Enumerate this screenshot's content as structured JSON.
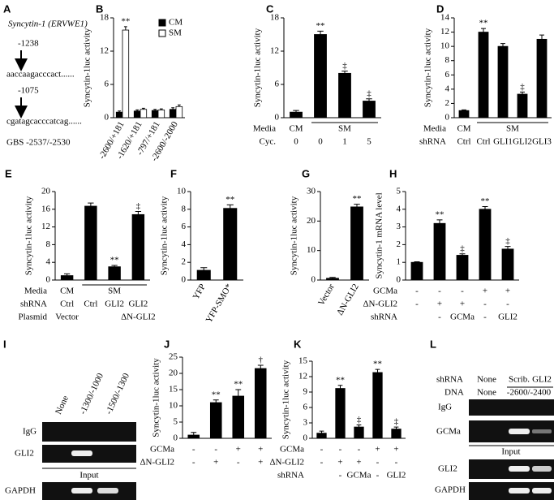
{
  "panel_A": {
    "letter": "A",
    "title": "Syncytin-1 (ERVWE1)",
    "pos1": "-1238",
    "seq1": "aaccaagacccact......",
    "pos2": "-1075",
    "seq2": "cgatagcacccatcag......",
    "gbs": "GBS -2537/-2530"
  },
  "chart_data": [
    {
      "panel": "B",
      "type": "bar",
      "y_label": "Syncytin-1luc activity",
      "categories": [
        "-2600/+181",
        "-1620/+181",
        "-797/+181",
        "-2600/-2000"
      ],
      "rotate_labels": true,
      "series": [
        {
          "name": "CM",
          "color": "#000000",
          "values": [
            1,
            1.2,
            1.3,
            1.5
          ],
          "errors": [
            0.2,
            0.2,
            0.2,
            0.3
          ]
        },
        {
          "name": "SM",
          "color": "#ffffff",
          "values": [
            15.8,
            1.5,
            1.4,
            2.0
          ],
          "errors": [
            0.6,
            0.2,
            0.2,
            0.3
          ],
          "annotations": [
            "**",
            null,
            null,
            null
          ]
        }
      ],
      "legend": "upper right",
      "ylim": [
        0,
        18
      ],
      "yticks": [
        0,
        6,
        12,
        18
      ]
    },
    {
      "panel": "C",
      "type": "bar",
      "y_label": "Syncytin-1luc activity",
      "color": "#000000",
      "values": [
        1,
        15,
        8,
        3
      ],
      "errors": [
        0.3,
        0.6,
        0.4,
        0.4
      ],
      "annotations": [
        null,
        "**",
        "‡",
        "‡"
      ],
      "rows": [
        {
          "label": "Media",
          "cells": [
            "CM",
            "SM",
            null,
            null
          ]
        },
        {
          "label": "Cyc.",
          "cells": [
            "0",
            "0",
            "1",
            "5"
          ]
        }
      ],
      "ylim": [
        0,
        18
      ],
      "yticks": [
        0,
        6,
        12,
        18
      ]
    },
    {
      "panel": "D",
      "type": "bar",
      "y_label": "Syncytin-1luc activity",
      "color": "#000000",
      "values": [
        1,
        12,
        10,
        3.3,
        11
      ],
      "errors": [
        0.1,
        0.5,
        0.4,
        0.3,
        0.6
      ],
      "annotations": [
        null,
        "**",
        null,
        "‡",
        null
      ],
      "rows": [
        {
          "label": "Media",
          "cells": [
            "CM",
            "SM",
            null,
            null,
            null
          ]
        },
        {
          "label": "shRNA",
          "cells": [
            "Ctrl",
            "Ctrl",
            "GLI1",
            "GLI2",
            "GLI3"
          ]
        }
      ],
      "ylim": [
        0,
        14
      ],
      "yticks": [
        0,
        2,
        4,
        6,
        8,
        10,
        12,
        14
      ]
    },
    {
      "panel": "E",
      "type": "bar",
      "y_label": "Syncytin-1luc activity",
      "color": "#000000",
      "values": [
        1,
        16.7,
        3,
        14.8
      ],
      "errors": [
        0.4,
        0.7,
        0.3,
        0.7
      ],
      "annotations": [
        null,
        null,
        "**",
        "‡"
      ],
      "rows": [
        {
          "label": "Media",
          "cells": [
            "CM",
            "SM",
            null,
            null
          ]
        },
        {
          "label": "shRNA",
          "cells": [
            "Ctrl",
            "Ctrl",
            "GLI2",
            "GLI2"
          ]
        },
        {
          "label": "Plasmid",
          "cells": [
            "Vector",
            null,
            null,
            "ΔN-GLI2"
          ]
        }
      ],
      "ylim": [
        0,
        20
      ],
      "yticks": [
        0,
        4,
        8,
        12,
        16,
        20
      ]
    },
    {
      "panel": "F",
      "type": "bar",
      "y_label": "Syncytin-1luc activity",
      "color": "#000000",
      "categories": [
        "YFP",
        "YFP-SMO*"
      ],
      "rotate_labels": true,
      "values": [
        1.1,
        8.1
      ],
      "errors": [
        0.3,
        0.4
      ],
      "annotations": [
        null,
        "**"
      ],
      "ylim": [
        0,
        10
      ],
      "yticks": [
        0,
        2,
        4,
        6,
        8,
        10
      ]
    },
    {
      "panel": "G",
      "type": "bar",
      "y_label": "Syncytin-1luc activity",
      "color": "#000000",
      "categories": [
        "Vector",
        "ΔN-GLI2"
      ],
      "rotate_labels": true,
      "values": [
        0.6,
        24.8
      ],
      "errors": [
        0.3,
        0.9
      ],
      "annotations": [
        null,
        "**"
      ],
      "ylim": [
        0,
        30
      ],
      "yticks": [
        0,
        10,
        20,
        30
      ]
    },
    {
      "panel": "H",
      "type": "bar",
      "y_label": "Syncytin-1 mRNA level",
      "color": "#000000",
      "values": [
        1,
        3.2,
        1.4,
        4,
        1.75
      ],
      "errors": [
        0.03,
        0.2,
        0.08,
        0.15,
        0.15
      ],
      "annotations": [
        null,
        "**",
        "‡",
        "**",
        "‡"
      ],
      "rows": [
        {
          "label": "GCMa",
          "cells": [
            "-",
            "-",
            "-",
            "+",
            "+"
          ]
        },
        {
          "label": "ΔN-GLI2",
          "cells": [
            "-",
            "+",
            "+",
            "-",
            "-"
          ]
        },
        {
          "label": "shRNA",
          "cells": [
            null,
            "-",
            "GCMa",
            "-",
            "GLI2"
          ]
        }
      ],
      "ylim": [
        0,
        5
      ],
      "yticks": [
        0,
        1,
        2,
        3,
        4,
        5
      ]
    },
    {
      "panel": "J",
      "type": "bar",
      "y_label": "Syncytin-1luc activity",
      "color": "#000000",
      "values": [
        1,
        11,
        13,
        21.5
      ],
      "errors": [
        0.8,
        0.8,
        2,
        1
      ],
      "annotations": [
        null,
        "**",
        "**",
        "†"
      ],
      "rows": [
        {
          "label": "GCMa",
          "cells": [
            "-",
            "-",
            "+",
            "+"
          ]
        },
        {
          "label": "ΔN-GLI2",
          "cells": [
            "-",
            "+",
            "-",
            "+"
          ]
        }
      ],
      "ylim": [
        0,
        25
      ],
      "yticks": [
        0,
        5,
        10,
        15,
        20,
        25
      ]
    },
    {
      "panel": "K",
      "type": "bar",
      "y_label": "Syncytin-1luc activity",
      "color": "#000000",
      "values": [
        1,
        9.7,
        2.2,
        12.8,
        1.8
      ],
      "errors": [
        0.4,
        0.6,
        0.4,
        0.6,
        0.4
      ],
      "annotations": [
        null,
        "**",
        "‡",
        "**",
        "‡"
      ],
      "rows": [
        {
          "label": "GCMa",
          "cells": [
            "-",
            "-",
            "-",
            "+",
            "+"
          ]
        },
        {
          "label": "ΔN-GLI2",
          "cells": [
            "-",
            "+",
            "+",
            "-",
            "-"
          ]
        },
        {
          "label": "shRNA",
          "cells": [
            null,
            "-",
            "GCMa",
            "-",
            "GLI2"
          ]
        }
      ],
      "ylim": [
        0,
        15
      ],
      "yticks": [
        0,
        3,
        6,
        9,
        12,
        15
      ]
    }
  ],
  "panel_I": {
    "letter": "I",
    "columns": [
      "None",
      "-1300/-1000",
      "-1500/-1300"
    ],
    "row1": "IgG",
    "row2": "GLI2",
    "input": "Input",
    "row3": "GAPDH"
  },
  "panel_L": {
    "letter": "L",
    "shrna_label": "shRNA",
    "shrna": [
      "None",
      "Scrib.",
      "GLI2"
    ],
    "dna_label": "DNA",
    "dna": [
      "None",
      "-2600/-2400"
    ],
    "row1": "IgG",
    "row2": "GCMa",
    "input": "Input",
    "row3": "GLI2",
    "row4": "GAPDH"
  }
}
